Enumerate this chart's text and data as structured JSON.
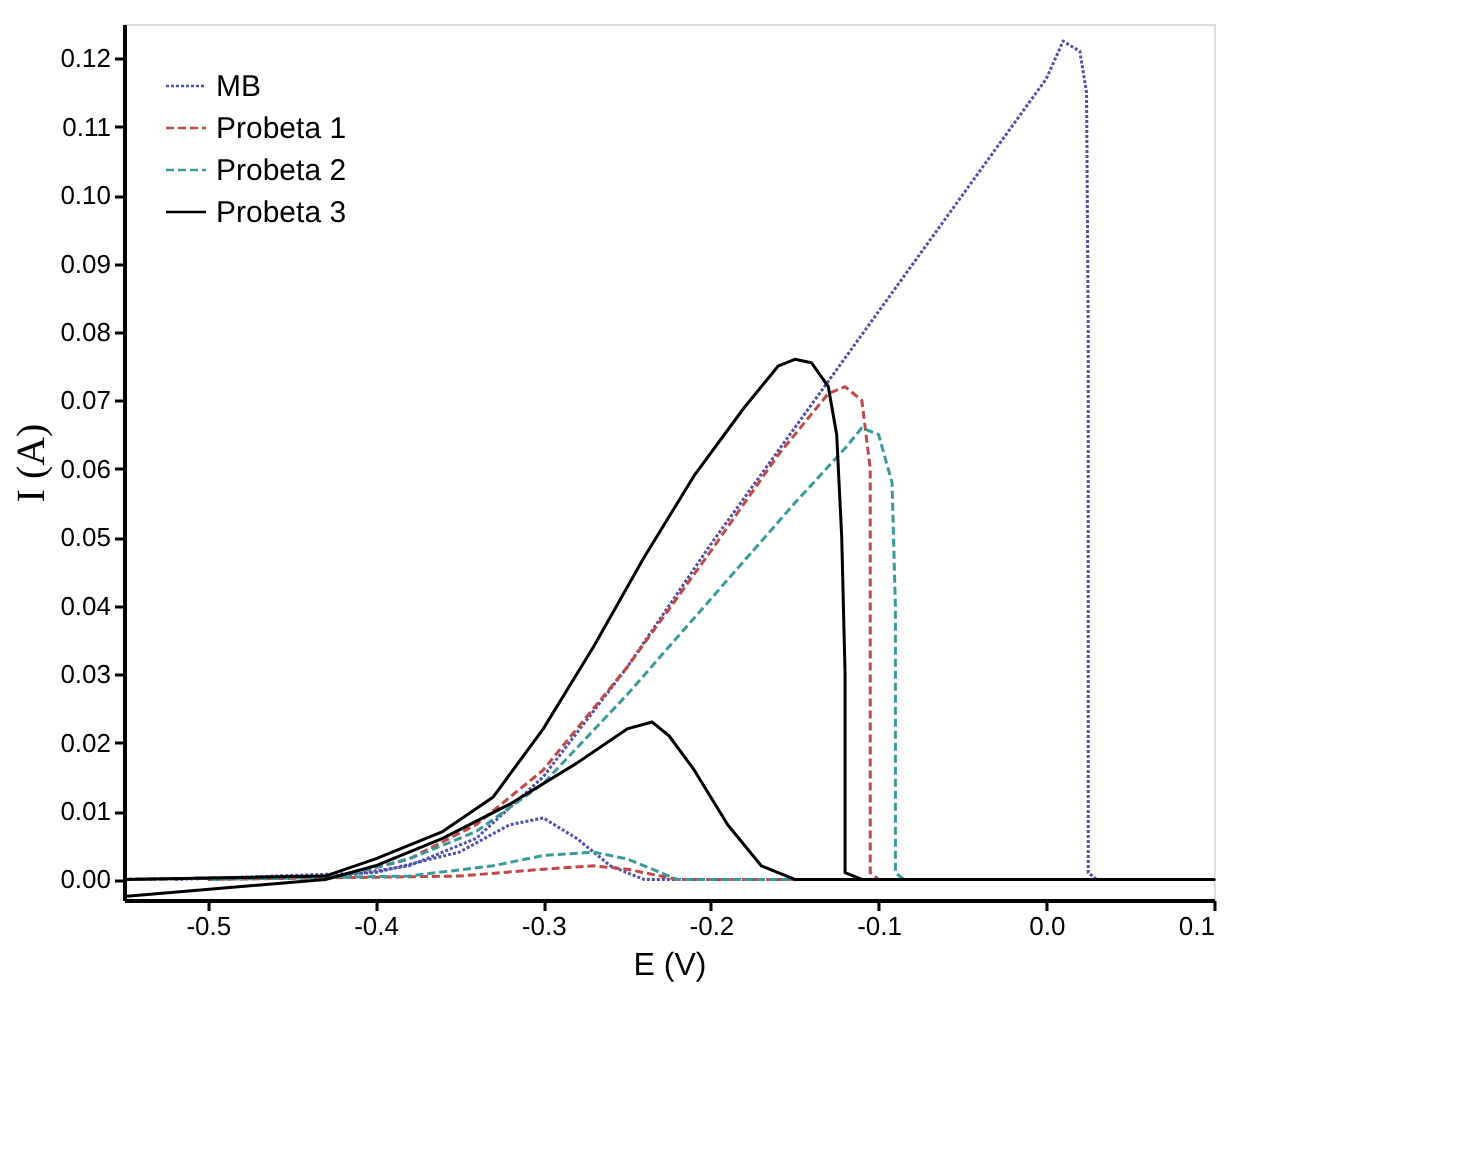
{
  "chart_data": {
    "type": "line",
    "xlabel": "E (V)",
    "ylabel": "I (A)",
    "xlim": [
      -0.55,
      0.1
    ],
    "ylim": [
      -0.003,
      0.125
    ],
    "xticks": [
      {
        "value": -0.5,
        "label": "-0.5"
      },
      {
        "value": -0.4,
        "label": "-0.4"
      },
      {
        "value": -0.3,
        "label": "-0.3"
      },
      {
        "value": -0.2,
        "label": "-0.2"
      },
      {
        "value": -0.1,
        "label": "-0.1"
      },
      {
        "value": 0,
        "label": "0.0"
      },
      {
        "value": 0.1,
        "label": "0.1"
      }
    ],
    "yticks": [
      {
        "value": 0,
        "label": "0.00"
      },
      {
        "value": 0.01,
        "label": "0.01"
      },
      {
        "value": 0.02,
        "label": "0.02"
      },
      {
        "value": 0.03,
        "label": "0.03"
      },
      {
        "value": 0.04,
        "label": "0.04"
      },
      {
        "value": 0.05,
        "label": "0.05"
      },
      {
        "value": 0.06,
        "label": "0.06"
      },
      {
        "value": 0.07,
        "label": "0.07"
      },
      {
        "value": 0.08,
        "label": "0.08"
      },
      {
        "value": 0.09,
        "label": "0.09"
      },
      {
        "value": 0.1,
        "label": "0.10"
      },
      {
        "value": 0.11,
        "label": "0.11"
      },
      {
        "value": 0.12,
        "label": "0.12"
      }
    ],
    "grid": false,
    "legend": "top left",
    "marker": "none",
    "series": [
      {
        "name": "MB",
        "color": "#5050a8",
        "line_style": "dotted",
        "x": [
          -0.55,
          -0.42,
          -0.38,
          -0.34,
          -0.3,
          -0.25,
          -0.2,
          -0.15,
          -0.1,
          -0.05,
          0,
          0.01,
          0.02,
          0.024,
          0.025,
          0.025,
          0.03,
          0.1,
          -0.24,
          -0.26,
          -0.28,
          -0.3,
          -0.32,
          -0.35,
          -0.4,
          -0.52
        ],
        "values": [
          0,
          0.0005,
          0.002,
          0.006,
          0.015,
          0.031,
          0.049,
          0.066,
          0.083,
          0.1,
          0.117,
          0.1225,
          0.121,
          0.115,
          0.08,
          0.001,
          0,
          0,
          0,
          0.002,
          0.006,
          0.009,
          0.008,
          0.004,
          0.001,
          0
        ]
      },
      {
        "name": "Probeta 1",
        "color": "#c04848",
        "line_style": "dashed",
        "x": [
          -0.55,
          -0.42,
          -0.38,
          -0.34,
          -0.3,
          -0.25,
          -0.2,
          -0.16,
          -0.13,
          -0.12,
          -0.11,
          -0.105,
          -0.105,
          -0.1,
          0.1,
          -0.22,
          -0.25,
          -0.27,
          -0.3,
          -0.35,
          -0.5
        ],
        "values": [
          0,
          0.0005,
          0.003,
          0.008,
          0.016,
          0.031,
          0.048,
          0.062,
          0.071,
          0.072,
          0.07,
          0.06,
          0.001,
          0,
          0,
          0,
          0.0015,
          0.002,
          0.0015,
          0.0005,
          0
        ]
      },
      {
        "name": "Probeta 2",
        "color": "#3a9a9a",
        "line_style": "dashed",
        "x": [
          -0.55,
          -0.42,
          -0.38,
          -0.34,
          -0.3,
          -0.25,
          -0.2,
          -0.15,
          -0.12,
          -0.11,
          -0.1,
          -0.092,
          -0.09,
          -0.09,
          -0.085,
          0.1,
          -0.22,
          -0.25,
          -0.27,
          -0.3,
          -0.33,
          -0.38,
          -0.5
        ],
        "values": [
          0,
          0.0005,
          0.003,
          0.007,
          0.014,
          0.027,
          0.041,
          0.055,
          0.063,
          0.066,
          0.065,
          0.058,
          0.04,
          0.001,
          0,
          0,
          0,
          0.003,
          0.004,
          0.0035,
          0.002,
          0.0005,
          0
        ]
      },
      {
        "name": "Probeta 3",
        "color": "#000000",
        "line_style": "solid",
        "x": [
          -0.55,
          -0.43,
          -0.4,
          -0.36,
          -0.33,
          -0.3,
          -0.27,
          -0.24,
          -0.21,
          -0.18,
          -0.16,
          -0.15,
          -0.14,
          -0.13,
          -0.125,
          -0.122,
          -0.12,
          -0.12,
          -0.11,
          0.1,
          -0.15,
          -0.17,
          -0.19,
          -0.21,
          -0.225,
          -0.235,
          -0.25,
          -0.28,
          -0.32,
          -0.36,
          -0.4,
          -0.43,
          -0.55
        ],
        "values": [
          0,
          0.0005,
          0.003,
          0.007,
          0.012,
          0.022,
          0.034,
          0.047,
          0.059,
          0.069,
          0.075,
          0.076,
          0.0755,
          0.072,
          0.065,
          0.05,
          0.03,
          0.001,
          0,
          0,
          0,
          0.002,
          0.008,
          0.016,
          0.021,
          0.023,
          0.022,
          0.017,
          0.011,
          0.006,
          0.002,
          0,
          -0.0025
        ]
      }
    ]
  }
}
